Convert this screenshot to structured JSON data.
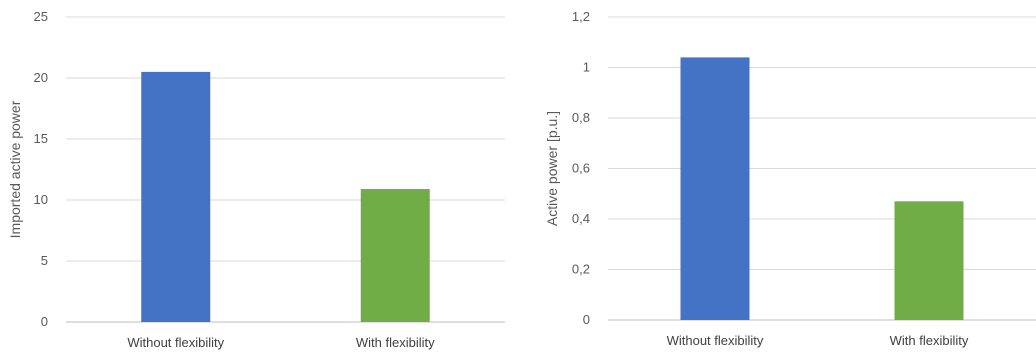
{
  "chart_data": [
    {
      "type": "bar",
      "title": "",
      "xlabel": "",
      "ylabel": "Imported active power",
      "categories": [
        "Without flexibility",
        "With flexibility"
      ],
      "values": [
        20.5,
        10.9
      ],
      "colors": [
        "#4472c4",
        "#70ad47"
      ],
      "ylim": [
        0,
        25
      ],
      "yticks": [
        "0",
        "5",
        "10",
        "15",
        "20",
        "25"
      ],
      "grid": true,
      "legend": "none"
    },
    {
      "type": "bar",
      "title": "",
      "xlabel": "",
      "ylabel": "Active power [p.u.]",
      "categories": [
        "Without flexibility",
        "With flexibility"
      ],
      "values": [
        1.04,
        0.47
      ],
      "colors": [
        "#4472c4",
        "#70ad47"
      ],
      "ylim": [
        0,
        1.2
      ],
      "yticks": [
        "0",
        "0,2",
        "0,4",
        "0,6",
        "0,8",
        "1",
        "1,2"
      ],
      "grid": true,
      "legend": "none"
    }
  ]
}
